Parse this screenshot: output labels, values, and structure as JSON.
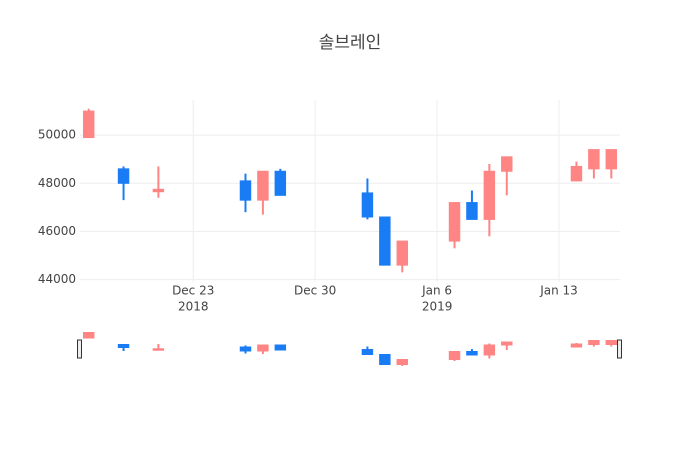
{
  "chart_data": {
    "type": "candlestick",
    "title": "솔브레인",
    "x": [
      "2018-12-17",
      "2018-12-19",
      "2018-12-21",
      "2018-12-26",
      "2018-12-27",
      "2018-12-28",
      "2019-01-02",
      "2019-01-03",
      "2019-01-04",
      "2019-01-07",
      "2019-01-08",
      "2019-01-09",
      "2019-01-10",
      "2019-01-14",
      "2019-01-15",
      "2019-01-16"
    ],
    "open": [
      49900,
      48600,
      47650,
      48100,
      47300,
      48500,
      47600,
      46600,
      44600,
      45600,
      47200,
      46500,
      48500,
      48100,
      48600,
      48600
    ],
    "high": [
      51100,
      48700,
      48700,
      48400,
      48500,
      48600,
      48200,
      46600,
      45600,
      47200,
      47700,
      48800,
      49100,
      48900,
      49400,
      49400
    ],
    "low": [
      49900,
      47300,
      47400,
      46800,
      46700,
      47500,
      46500,
      44600,
      44300,
      45300,
      46500,
      45800,
      47500,
      48100,
      48200,
      48200
    ],
    "close": [
      51000,
      48000,
      47750,
      47300,
      48500,
      47500,
      46600,
      44600,
      45600,
      47200,
      46500,
      48500,
      49100,
      48700,
      49400,
      49400
    ],
    "increasing_color": "#ff8585",
    "decreasing_color": "#1a7cf5",
    "xlim": [
      "2018-12-16T12:00",
      "2019-01-16T12:00"
    ],
    "xticks": [
      {
        "value": "2018-12-23",
        "label": "Dec 23",
        "year": "2018"
      },
      {
        "value": "2018-12-30",
        "label": "Dec 30"
      },
      {
        "value": "2019-01-06",
        "label": "Jan 6",
        "year": "2019"
      },
      {
        "value": "2019-01-13",
        "label": "Jan 13"
      }
    ],
    "ylim": [
      43900,
      51460
    ],
    "yticks": [
      44000,
      46000,
      48000,
      50000
    ],
    "grid": true,
    "rangeslider": true
  }
}
